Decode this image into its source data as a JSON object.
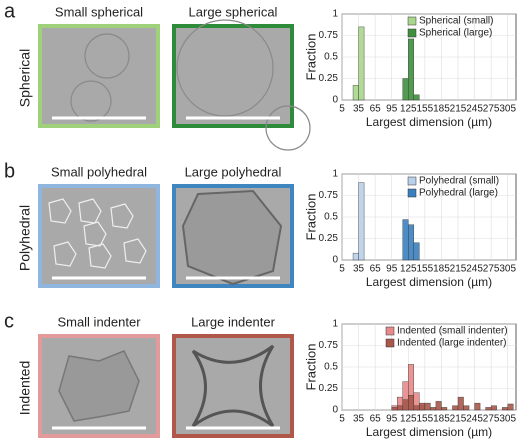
{
  "panels": [
    {
      "letter": "a",
      "row_label": "Spherical",
      "images": [
        "Small spherical",
        "Large spherical"
      ]
    },
    {
      "letter": "b",
      "row_label": "Polyhedral",
      "images": [
        "Small polyhedral",
        "Large polyhedral"
      ]
    },
    {
      "letter": "c",
      "row_label": "Indented",
      "images": [
        "Small indenter",
        "Large indenter"
      ]
    }
  ],
  "chart_data": [
    {
      "type": "histogram",
      "xlabel": "Largest dimension (µm)",
      "ylabel": "Fraction",
      "xlim": [
        5,
        320
      ],
      "ylim": [
        0,
        1
      ],
      "xticks": [
        5,
        35,
        65,
        95,
        125,
        155,
        185,
        215,
        245,
        275,
        305
      ],
      "yticks": [
        0,
        0.25,
        0.5,
        0.75,
        1
      ],
      "legend": "upper right",
      "series": [
        {
          "name": "Spherical (small)",
          "color": "#a9d68c",
          "bins": [
            25,
            35,
            45
          ],
          "values": [
            0.17,
            0.85
          ]
        },
        {
          "name": "Spherical (large)",
          "color": "#3f8f3f",
          "bins": [
            115,
            125,
            135,
            145
          ],
          "values": [
            0.25,
            0.71,
            0.06
          ]
        }
      ]
    },
    {
      "type": "histogram",
      "xlabel": "Largest dimension (µm)",
      "ylabel": "Fraction",
      "xlim": [
        5,
        320
      ],
      "ylim": [
        0,
        1
      ],
      "xticks": [
        5,
        35,
        65,
        95,
        125,
        155,
        185,
        215,
        245,
        275,
        305
      ],
      "yticks": [
        0,
        0.25,
        0.5,
        0.75,
        1
      ],
      "legend": "upper right",
      "series": [
        {
          "name": "Polyhedral (small)",
          "color": "#b9d0ea",
          "bins": [
            25,
            35,
            45
          ],
          "values": [
            0.08,
            0.9
          ]
        },
        {
          "name": "Polyhedral (large)",
          "color": "#3a7fbf",
          "bins": [
            115,
            125,
            135,
            145
          ],
          "values": [
            0.47,
            0.41,
            0.2
          ]
        }
      ]
    },
    {
      "type": "histogram",
      "xlabel": "Largest dimension (µm)",
      "ylabel": "Fraction",
      "xlim": [
        5,
        320
      ],
      "ylim": [
        0,
        1
      ],
      "xticks": [
        5,
        35,
        65,
        95,
        125,
        155,
        185,
        215,
        245,
        275,
        305
      ],
      "yticks": [
        0,
        0.25,
        0.5,
        0.75,
        1
      ],
      "legend": "upper right",
      "series": [
        {
          "name": "Indented (small indenter)",
          "color": "#e8898a",
          "bins": [
            95,
            105,
            115,
            125,
            135,
            145,
            155
          ],
          "values": [
            0.05,
            0.15,
            0.33,
            0.53,
            0.2,
            0.05
          ]
        },
        {
          "name": "Indented (large indenter)",
          "color": "#a8574a",
          "bins": [
            95,
            105,
            115,
            125,
            135,
            145,
            155,
            165,
            175,
            185,
            195,
            205,
            215,
            225,
            235,
            245,
            255,
            265,
            275,
            285,
            295,
            305,
            315
          ],
          "values": [
            0.03,
            0.05,
            0.12,
            0.17,
            0.05,
            0.08,
            0.08,
            0.03,
            0.1,
            0.03,
            0,
            0.05,
            0.15,
            0.05,
            0,
            0.08,
            0,
            0.03,
            0.05,
            0,
            0.03,
            0.07
          ]
        }
      ]
    }
  ]
}
